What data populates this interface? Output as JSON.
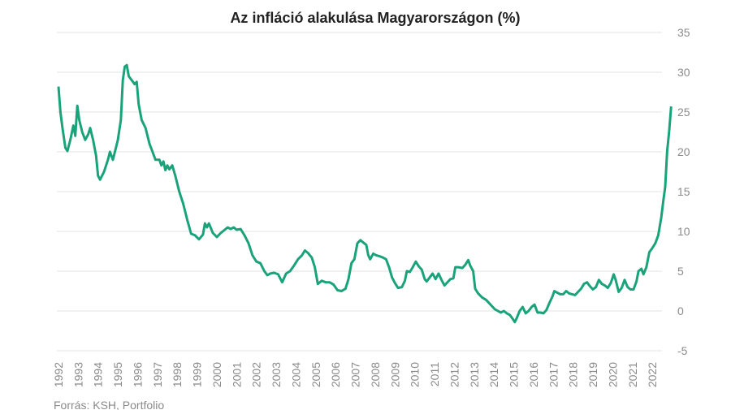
{
  "chart_data": {
    "type": "line",
    "title": "Az infláció alakulása Magyarországon (%)",
    "source": "Forrás: KSH, Portfolio",
    "x": [
      1992.0,
      1992.1,
      1992.2,
      1992.35,
      1992.45,
      1992.6,
      1992.75,
      1992.85,
      1992.95,
      1993.05,
      1993.2,
      1993.35,
      1993.5,
      1993.6,
      1993.75,
      1993.9,
      1994.0,
      1994.1,
      1994.3,
      1994.5,
      1994.6,
      1994.75,
      1994.9,
      1995.0,
      1995.15,
      1995.25,
      1995.35,
      1995.45,
      1995.55,
      1995.7,
      1995.85,
      1995.95,
      1996.05,
      1996.2,
      1996.4,
      1996.6,
      1996.75,
      1996.9,
      1997.1,
      1997.2,
      1997.3,
      1997.4,
      1997.5,
      1997.6,
      1997.75,
      1997.9,
      1998.1,
      1998.3,
      1998.5,
      1998.7,
      1998.9,
      1999.1,
      1999.3,
      1999.4,
      1999.5,
      1999.6,
      1999.8,
      2000.0,
      2000.2,
      2000.4,
      2000.55,
      2000.7,
      2000.85,
      2001.0,
      2001.2,
      2001.4,
      2001.6,
      2001.8,
      2002.0,
      2002.2,
      2002.4,
      2002.55,
      2002.7,
      2002.9,
      2003.1,
      2003.3,
      2003.5,
      2003.7,
      2003.9,
      2004.1,
      2004.3,
      2004.45,
      2004.6,
      2004.8,
      2004.95,
      2005.1,
      2005.3,
      2005.5,
      2005.7,
      2005.9,
      2006.1,
      2006.3,
      2006.5,
      2006.65,
      2006.8,
      2006.95,
      2007.1,
      2007.25,
      2007.45,
      2007.55,
      2007.65,
      2007.75,
      2007.9,
      2008.05,
      2008.2,
      2008.4,
      2008.55,
      2008.7,
      2008.85,
      2009.0,
      2009.15,
      2009.35,
      2009.5,
      2009.6,
      2009.75,
      2009.9,
      2010.05,
      2010.2,
      2010.35,
      2010.5,
      2010.6,
      2010.75,
      2010.9,
      2011.05,
      2011.2,
      2011.35,
      2011.5,
      2011.65,
      2011.8,
      2011.95,
      2012.05,
      2012.2,
      2012.4,
      2012.55,
      2012.7,
      2012.8,
      2012.95,
      2013.05,
      2013.2,
      2013.4,
      2013.6,
      2013.75,
      2013.9,
      2014.05,
      2014.2,
      2014.35,
      2014.5,
      2014.65,
      2014.8,
      2014.95,
      2015.05,
      2015.15,
      2015.3,
      2015.45,
      2015.6,
      2015.75,
      2015.9,
      2016.05,
      2016.2,
      2016.35,
      2016.5,
      2016.65,
      2016.8,
      2016.95,
      2017.05,
      2017.2,
      2017.35,
      2017.5,
      2017.65,
      2017.8,
      2017.95,
      2018.1,
      2018.25,
      2018.4,
      2018.55,
      2018.7,
      2018.85,
      2019.0,
      2019.15,
      2019.3,
      2019.45,
      2019.6,
      2019.75,
      2019.9,
      2020.05,
      2020.15,
      2020.3,
      2020.45,
      2020.6,
      2020.75,
      2020.9,
      2021.05,
      2021.2,
      2021.3,
      2021.45,
      2021.55,
      2021.7,
      2021.85,
      2022.0,
      2022.15,
      2022.3,
      2022.45,
      2022.55,
      2022.65,
      2022.75,
      2022.85,
      2022.95
    ],
    "series": [
      {
        "name": "Infláció",
        "color": "#1aa37a",
        "values": [
          28.2,
          25,
          23,
          20.5,
          20.1,
          21.5,
          23.3,
          22,
          25.8,
          24,
          22.5,
          21.5,
          22.2,
          23,
          21.5,
          19.5,
          17,
          16.5,
          17.5,
          19,
          20,
          19,
          20.5,
          21.5,
          24,
          29,
          30.7,
          30.9,
          29.5,
          29,
          28.5,
          28.8,
          26,
          24,
          23,
          21,
          20,
          19,
          19,
          18.3,
          18.8,
          17.7,
          18.3,
          17.8,
          18.3,
          17,
          15,
          13.5,
          11.5,
          9.7,
          9.5,
          9,
          9.6,
          11,
          10.5,
          11,
          9.8,
          9.3,
          9.8,
          10.2,
          10.5,
          10.3,
          10.5,
          10.2,
          10.3,
          9.5,
          8.5,
          7,
          6.2,
          6,
          5,
          4.5,
          4.7,
          4.8,
          4.6,
          3.6,
          4.7,
          5,
          5.7,
          6.5,
          7,
          7.6,
          7.3,
          6.7,
          5.5,
          3.4,
          3.8,
          3.6,
          3.6,
          3.3,
          2.6,
          2.5,
          2.8,
          4,
          6,
          6.5,
          8.5,
          8.9,
          8.5,
          8.3,
          7,
          6.5,
          7.2,
          7,
          6.9,
          6.7,
          6.5,
          5.5,
          4.2,
          3.5,
          2.9,
          3,
          3.8,
          5,
          4.9,
          5.5,
          6.2,
          5.6,
          5.2,
          4,
          3.7,
          4.2,
          4.7,
          4,
          4.7,
          3.9,
          3.2,
          3.6,
          4,
          4.1,
          5.5,
          5.5,
          5.4,
          5.8,
          6.4,
          5.7,
          5,
          2.8,
          2.2,
          1.7,
          1.4,
          1,
          0.6,
          0.2,
          0,
          -0.2,
          0,
          -0.3,
          -0.5,
          -1,
          -1.4,
          -0.9,
          0,
          0.5,
          -0.3,
          0,
          0.5,
          0.8,
          -0.2,
          -0.2,
          -0.3,
          0.1,
          1,
          1.8,
          2.5,
          2.3,
          2.1,
          2.1,
          2.5,
          2.2,
          2.1,
          2,
          2.4,
          2.8,
          3.4,
          3.6,
          3.1,
          2.7,
          3,
          3.9,
          3.4,
          3.2,
          2.9,
          3.5,
          4.6,
          3.9,
          2.4,
          2.9,
          3.9,
          3,
          2.7,
          2.7,
          3.7,
          5,
          5.3,
          4.6,
          5.5,
          7.4,
          7.9,
          8.5,
          9.5,
          11.7,
          13.7,
          15.6,
          20.1,
          22.5,
          25.7
        ]
      }
    ],
    "xlim": [
      1992,
      2023
    ],
    "xticks": [
      1992,
      1993,
      1994,
      1995,
      1996,
      1997,
      1998,
      1999,
      2000,
      2001,
      2002,
      2003,
      2004,
      2005,
      2006,
      2007,
      2008,
      2009,
      2010,
      2011,
      2012,
      2013,
      2014,
      2015,
      2016,
      2017,
      2018,
      2019,
      2020,
      2021,
      2022
    ],
    "ylim": [
      -5,
      35
    ],
    "yticks": [
      -5,
      0,
      5,
      10,
      15,
      20,
      25,
      30,
      35
    ],
    "grid": true
  }
}
